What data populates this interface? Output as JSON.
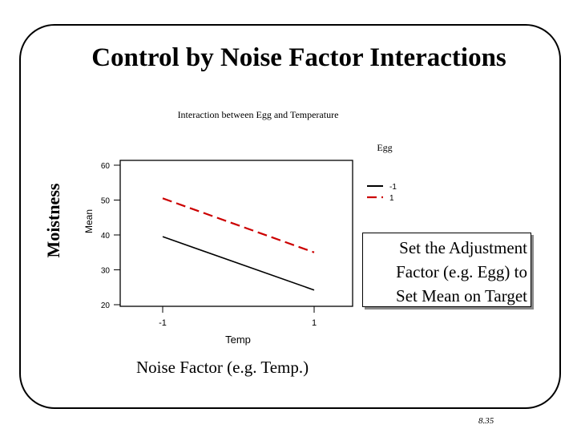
{
  "slide": {
    "title": "Control by Noise Factor Interactions",
    "y_annotation": "Moistness",
    "x_annotation": "Noise Factor (e.g. Temp.)",
    "callout_lines": [
      "Set the Adjustment",
      "Factor (e.g. Egg) to",
      "Set Mean on Target"
    ],
    "page_number": "8.35"
  },
  "chart_data": {
    "type": "line",
    "title": "Interaction between Egg and Temperature",
    "xlabel": "Temp",
    "ylabel": "Mean",
    "categories": [
      "-1",
      "1"
    ],
    "yticks": [
      20,
      30,
      40,
      50,
      60
    ],
    "ylim": [
      20,
      60
    ],
    "legend": {
      "title": "Egg",
      "placement": "top-right"
    },
    "series": [
      {
        "name": "-1",
        "values": [
          39.5,
          24.2
        ],
        "color": "#000000",
        "style": "solid"
      },
      {
        "name": "1",
        "values": [
          50.5,
          35.0
        ],
        "color": "#cc0000",
        "style": "dashed"
      }
    ],
    "grid": false
  }
}
